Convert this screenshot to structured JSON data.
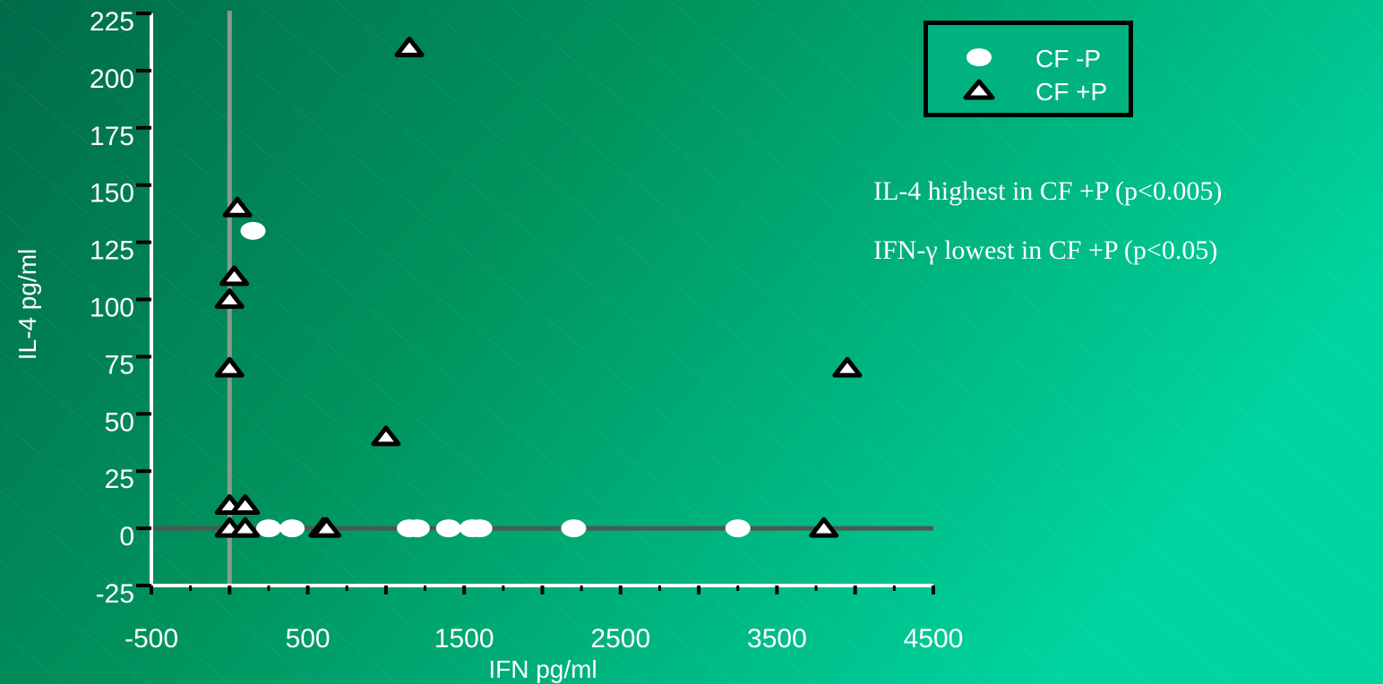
{
  "colors": {
    "bg_start": "#006b4a",
    "bg_mid": "#00955f",
    "bg_end": "#00d4a0",
    "axis": "#ffffff",
    "ref_line": "#8a9a8f",
    "ref_line_h": "#4a5a52",
    "marker_cf_minus": "#ffffff",
    "marker_cf_plus_fill": "#ffffff",
    "marker_cf_plus_stroke": "#000000"
  },
  "chart_data": {
    "type": "scatter",
    "xlabel": "IFN pg/ml",
    "ylabel": "IL-4  pg/ml",
    "xlim": [
      -500,
      4500
    ],
    "ylim": [
      -25,
      225
    ],
    "x_ticks": [
      "-500",
      "500",
      "1500",
      "2500",
      "3500",
      "4500"
    ],
    "y_ticks": [
      "225",
      "200",
      "175",
      "150",
      "125",
      "100",
      "75",
      "50",
      "25",
      "0",
      "-25"
    ],
    "x_tick_values": [
      -500,
      500,
      1500,
      2500,
      3500,
      4500
    ],
    "y_tick_values": [
      225,
      200,
      175,
      150,
      125,
      100,
      75,
      50,
      25,
      0,
      -25
    ],
    "reference_lines": {
      "x": 0,
      "y": 0
    },
    "legend_position": "top-right",
    "series": [
      {
        "name": "CF -P",
        "marker": "ellipse",
        "points": [
          [
            150,
            130
          ],
          [
            250,
            0
          ],
          [
            400,
            0
          ],
          [
            1150,
            0
          ],
          [
            1200,
            0
          ],
          [
            1400,
            0
          ],
          [
            1550,
            0
          ],
          [
            1600,
            0
          ],
          [
            2200,
            0
          ],
          [
            3250,
            0
          ]
        ]
      },
      {
        "name": "CF +P",
        "marker": "triangle",
        "points": [
          [
            1150,
            210
          ],
          [
            50,
            140
          ],
          [
            30,
            110
          ],
          [
            0,
            100
          ],
          [
            0,
            70
          ],
          [
            1000,
            40
          ],
          [
            3950,
            70
          ],
          [
            0,
            10
          ],
          [
            100,
            10
          ],
          [
            0,
            0
          ],
          [
            100,
            0
          ],
          [
            600,
            0
          ],
          [
            620,
            0
          ],
          [
            3800,
            0
          ]
        ]
      }
    ]
  },
  "legend": {
    "items": [
      {
        "label": "CF -P"
      },
      {
        "label": "CF +P"
      }
    ]
  },
  "annotations": [
    "IL-4 highest in CF +P (p<0.005)",
    "IFN-γ lowest in CF +P (p<0.05)"
  ]
}
